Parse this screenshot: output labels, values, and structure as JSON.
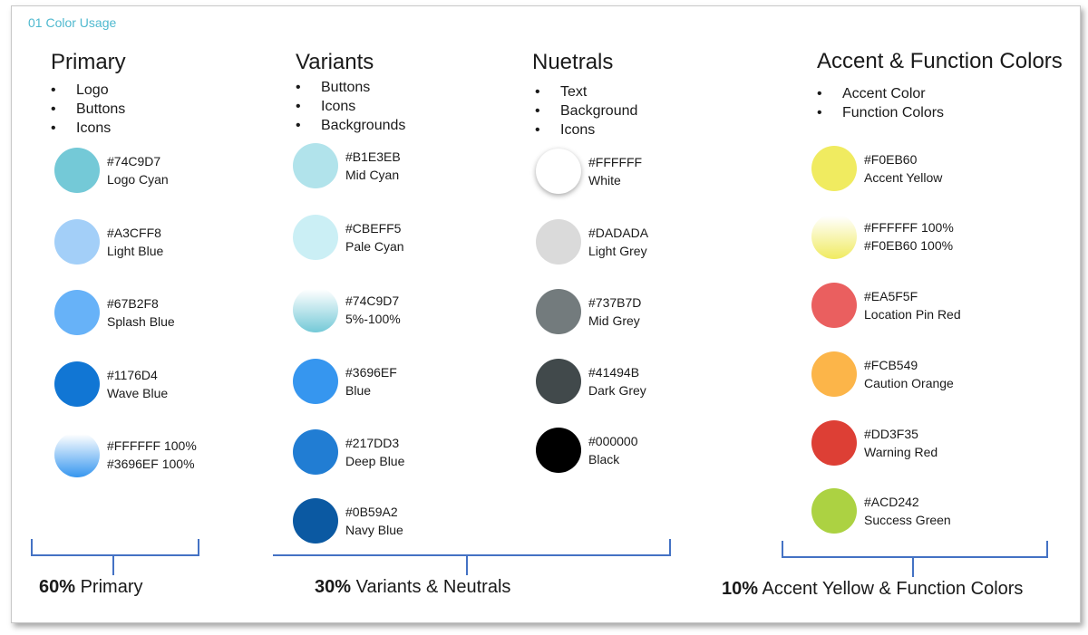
{
  "page_title": "01 Color Usage",
  "sections": {
    "primary": {
      "title": "Primary",
      "bullets": [
        "Logo",
        "Buttons",
        "Icons"
      ],
      "swatches": [
        {
          "hex": "#74C9D7",
          "name": "Logo Cyan",
          "fill": "#74C9D7"
        },
        {
          "hex": "#A3CFF8",
          "name": "Light Blue",
          "fill": "#A3CFF8"
        },
        {
          "hex": "#67B2F8",
          "name": "Splash Blue",
          "fill": "#67B2F8"
        },
        {
          "hex": "#1176D4",
          "name": "Wave Blue",
          "fill": "#1176D4"
        },
        {
          "hex": "#FFFFFF 100%",
          "name": "#3696EF 100%",
          "gradient": [
            "#FFFFFF",
            "#3696EF"
          ]
        }
      ]
    },
    "variants": {
      "title": "Variants",
      "bullets": [
        "Buttons",
        "Icons",
        "Backgrounds"
      ],
      "swatches": [
        {
          "hex": "#B1E3EB",
          "name": "Mid Cyan",
          "fill": "#B1E3EB"
        },
        {
          "hex": "#CBEFF5",
          "name": "Pale Cyan",
          "fill": "#CBEFF5"
        },
        {
          "hex": "#74C9D7",
          "name": "5%-100%",
          "gradient": [
            "#FFFFFF",
            "#74C9D7"
          ]
        },
        {
          "hex": "#3696EF",
          "name": "Blue",
          "fill": "#3696EF"
        },
        {
          "hex": "#217DD3",
          "name": "Deep Blue",
          "fill": "#217DD3"
        },
        {
          "hex": "#0B59A2",
          "name": "Navy Blue",
          "fill": "#0B59A2"
        }
      ]
    },
    "neutrals": {
      "title": "Nuetrals",
      "bullets": [
        "Text",
        "Background",
        "Icons"
      ],
      "swatches": [
        {
          "hex": "#FFFFFF",
          "name": "White",
          "fill": "#FFFFFF"
        },
        {
          "hex": "#DADADA",
          "name": "Light Grey",
          "fill": "#DADADA"
        },
        {
          "hex": "#737B7D",
          "name": "Mid Grey",
          "fill": "#737B7D"
        },
        {
          "hex": "#41494B",
          "name": "Dark Grey",
          "fill": "#41494B"
        },
        {
          "hex": "#000000",
          "name": "Black",
          "fill": "#000000"
        }
      ]
    },
    "accent": {
      "title": "Accent & Function Colors",
      "bullets": [
        "Accent Color",
        "Function Colors"
      ],
      "swatches": [
        {
          "hex": "#F0EB60",
          "name": "Accent Yellow",
          "fill": "#F0EB60"
        },
        {
          "hex": "#FFFFFF 100%",
          "name": "#F0EB60 100%",
          "gradient": [
            "#FFFFFF",
            "#F0EB60"
          ]
        },
        {
          "hex": "#EA5F5F",
          "name": "Location Pin Red",
          "fill": "#EA5F5F"
        },
        {
          "hex": "#FCB549",
          "name": "Caution Orange",
          "fill": "#FCB549"
        },
        {
          "hex": "#DD3F35",
          "name": "Warning Red",
          "fill": "#DD3F35"
        },
        {
          "hex": "#ACD242",
          "name": "Success Green",
          "fill": "#ACD242"
        }
      ]
    }
  },
  "summary": {
    "primary": {
      "percent": "60%",
      "label": " Primary"
    },
    "variants": {
      "percent": "30%",
      "label": " Variants & Neutrals"
    },
    "accent": {
      "percent": "10%",
      "label": " Accent Yellow & Function Colors"
    }
  },
  "bracket_color": "#4472C4"
}
